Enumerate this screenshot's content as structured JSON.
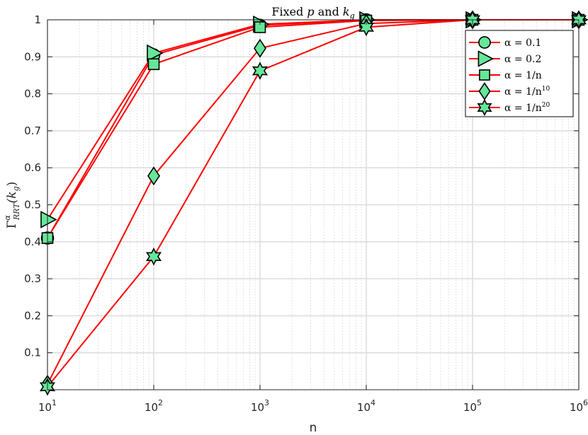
{
  "chart_data": {
    "type": "line",
    "title": "Fixed p and k_g",
    "title_parts": [
      "Fixed ",
      "p",
      " and ",
      "k",
      "g"
    ],
    "xlabel": "n",
    "ylabel": "Γ^α_RRT(k_g)",
    "ylabel_parts": [
      "Γ",
      "α",
      "RRT",
      "(k",
      "g",
      ")"
    ],
    "xscale": "log",
    "xlim": [
      10,
      1000000
    ],
    "ylim": [
      0,
      1
    ],
    "grid": true,
    "legend_position": "top-right",
    "line_color": "#ff0000",
    "marker_fill": "#66e699",
    "x": [
      10,
      100,
      1000,
      10000,
      100000,
      1000000
    ],
    "x_tick_labels": [
      {
        "base": "10",
        "exp": "1"
      },
      {
        "base": "10",
        "exp": "2"
      },
      {
        "base": "10",
        "exp": "3"
      },
      {
        "base": "10",
        "exp": "4"
      },
      {
        "base": "10",
        "exp": "5"
      },
      {
        "base": "10",
        "exp": "6"
      }
    ],
    "y_ticks": [
      0.1,
      0.2,
      0.3,
      0.4,
      0.5,
      0.6,
      0.7,
      0.8,
      0.9,
      1
    ],
    "y_tick_labels": [
      "0.1",
      "0.2",
      "0.3",
      "0.4",
      "0.5",
      "0.6",
      "0.7",
      "0.8",
      "0.9",
      "1"
    ],
    "series": [
      {
        "name": "α = 0.1",
        "legend_parts": [
          "α = 0.1",
          ""
        ],
        "marker": "circle",
        "values": [
          0.41,
          0.905,
          0.985,
          1.0,
          1.0,
          1.0
        ]
      },
      {
        "name": "α = 0.2",
        "legend_parts": [
          "α = 0.2",
          ""
        ],
        "marker": "triangle-right",
        "values": [
          0.46,
          0.91,
          0.988,
          1.0,
          1.0,
          1.0
        ]
      },
      {
        "name": "α = 1/n",
        "legend_parts": [
          "α = 1/n",
          ""
        ],
        "marker": "square",
        "values": [
          0.41,
          0.88,
          0.98,
          0.998,
          1.0,
          1.0
        ]
      },
      {
        "name": "α = 1/n^10",
        "legend_parts": [
          "α = 1/n",
          "10"
        ],
        "marker": "diamond",
        "values": [
          0.015,
          0.578,
          0.923,
          0.99,
          1.0,
          1.0
        ]
      },
      {
        "name": "α = 1/n^20",
        "legend_parts": [
          "α = 1/n",
          "20"
        ],
        "marker": "hexagram",
        "values": [
          0.008,
          0.36,
          0.862,
          0.98,
          1.0,
          1.0
        ]
      }
    ]
  }
}
